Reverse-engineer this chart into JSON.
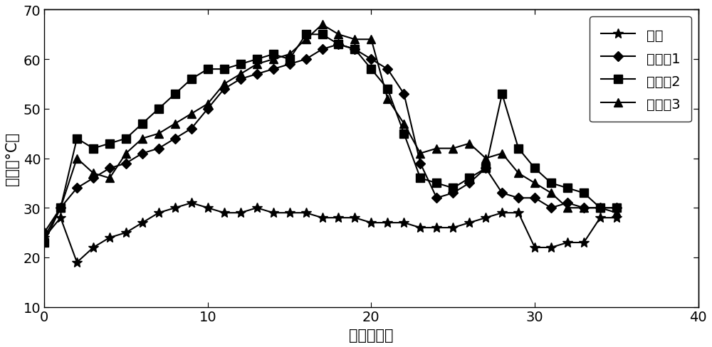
{
  "title": "",
  "xlabel": "时间（天）",
  "ylabel": "温度（°C）",
  "xlim": [
    0,
    40
  ],
  "ylim": [
    10,
    70
  ],
  "xticks": [
    0,
    10,
    20,
    30,
    40
  ],
  "yticks": [
    10,
    20,
    30,
    40,
    50,
    60,
    70
  ],
  "series": {
    "室温": {
      "x": [
        0,
        1,
        2,
        3,
        4,
        5,
        6,
        7,
        8,
        9,
        10,
        11,
        12,
        13,
        14,
        15,
        16,
        17,
        18,
        19,
        20,
        21,
        22,
        23,
        24,
        25,
        26,
        27,
        28,
        29,
        30,
        31,
        32,
        33,
        34,
        35
      ],
      "y": [
        24,
        28,
        19,
        22,
        24,
        25,
        27,
        29,
        30,
        31,
        30,
        29,
        29,
        30,
        29,
        29,
        29,
        28,
        28,
        28,
        27,
        27,
        27,
        26,
        26,
        26,
        27,
        28,
        29,
        29,
        22,
        22,
        23,
        23,
        28,
        28
      ],
      "marker": "*",
      "markersize": 10,
      "color": "#000000",
      "linestyle": "-",
      "linewidth": 1.5,
      "label": "室温"
    },
    "实施例1": {
      "x": [
        0,
        1,
        2,
        3,
        4,
        5,
        6,
        7,
        8,
        9,
        10,
        11,
        12,
        13,
        14,
        15,
        16,
        17,
        18,
        19,
        20,
        21,
        22,
        23,
        24,
        25,
        26,
        27,
        28,
        29,
        30,
        31,
        32,
        33,
        34,
        35
      ],
      "y": [
        25,
        30,
        34,
        36,
        38,
        39,
        41,
        42,
        44,
        46,
        50,
        54,
        56,
        57,
        58,
        59,
        60,
        62,
        63,
        62,
        60,
        58,
        53,
        39,
        32,
        33,
        35,
        38,
        33,
        32,
        32,
        30,
        31,
        30,
        30,
        30
      ],
      "marker": "D",
      "markersize": 7,
      "color": "#000000",
      "linestyle": "-",
      "linewidth": 1.5,
      "label": "实施例1"
    },
    "实施例2": {
      "x": [
        0,
        1,
        2,
        3,
        4,
        5,
        6,
        7,
        8,
        9,
        10,
        11,
        12,
        13,
        14,
        15,
        16,
        17,
        18,
        19,
        20,
        21,
        22,
        23,
        24,
        25,
        26,
        27,
        28,
        29,
        30,
        31,
        32,
        33,
        34,
        35
      ],
      "y": [
        23,
        30,
        44,
        42,
        43,
        44,
        47,
        50,
        53,
        56,
        58,
        58,
        59,
        60,
        61,
        60,
        65,
        65,
        63,
        62,
        58,
        54,
        45,
        36,
        35,
        34,
        36,
        38,
        53,
        42,
        38,
        35,
        34,
        33,
        30,
        30
      ],
      "marker": "s",
      "markersize": 8,
      "color": "#000000",
      "linestyle": "-",
      "linewidth": 1.5,
      "label": "实施例2"
    },
    "实施例3": {
      "x": [
        0,
        1,
        2,
        3,
        4,
        5,
        6,
        7,
        8,
        9,
        10,
        11,
        12,
        13,
        14,
        15,
        16,
        17,
        18,
        19,
        20,
        21,
        22,
        23,
        24,
        25,
        26,
        27,
        28,
        29,
        30,
        31,
        32,
        33,
        34,
        35
      ],
      "y": [
        24,
        30,
        40,
        37,
        36,
        41,
        44,
        45,
        47,
        49,
        51,
        55,
        57,
        59,
        60,
        61,
        64,
        67,
        65,
        64,
        64,
        52,
        47,
        41,
        42,
        42,
        43,
        40,
        41,
        37,
        35,
        33,
        30,
        30,
        30,
        29
      ],
      "marker": "^",
      "markersize": 8,
      "color": "#000000",
      "linestyle": "-",
      "linewidth": 1.5,
      "label": "实施例3"
    }
  },
  "legend_loc": "upper right",
  "legend_fontsize": 14,
  "axis_fontsize": 15,
  "tick_fontsize": 14,
  "bg_color": "#ffffff"
}
